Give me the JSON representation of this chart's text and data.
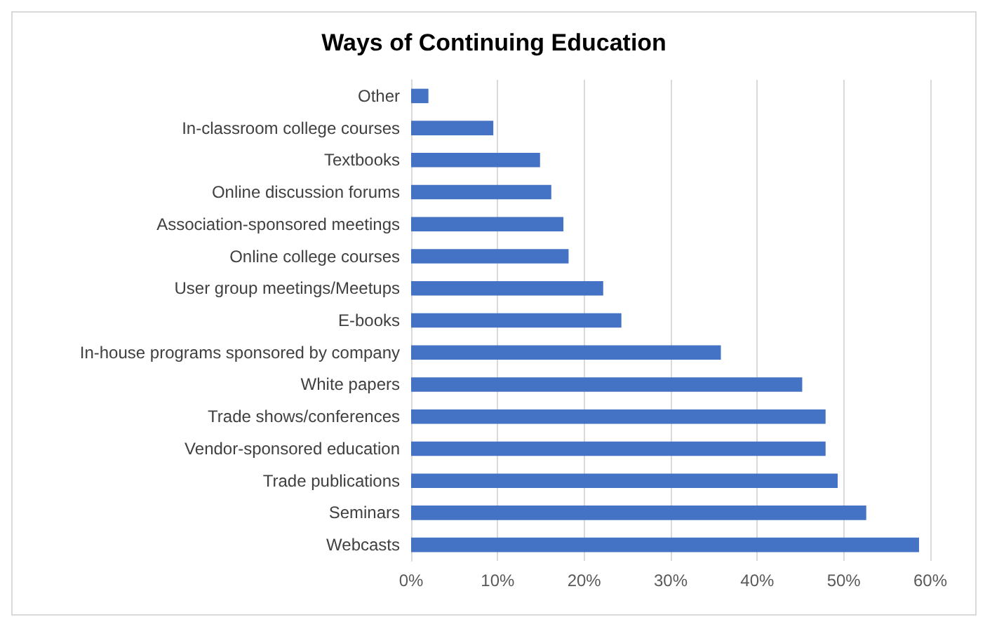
{
  "chart_data": {
    "type": "bar",
    "orientation": "horizontal",
    "title": "Ways of Continuing Education",
    "categories": [
      "Other",
      "In-classroom college courses",
      "Textbooks",
      "Online discussion forums",
      "Association-sponsored meetings",
      "Online college courses",
      "User group meetings/Meetups",
      "E-books",
      "In-house programs sponsored by company",
      "White papers",
      "Trade shows/conferences",
      "Vendor-sponsored education",
      "Trade publications",
      "Seminars",
      "Webcasts"
    ],
    "values": [
      2,
      9.5,
      14.9,
      16.2,
      17.6,
      18.2,
      22.2,
      24.3,
      35.8,
      45.2,
      47.9,
      47.9,
      49.3,
      52.6,
      58.7
    ],
    "color": "#4472c4",
    "xlim": [
      0,
      60
    ],
    "xticks": [
      {
        "value": 0,
        "label": "0%"
      },
      {
        "value": 10,
        "label": "10%"
      },
      {
        "value": 20,
        "label": "20%"
      },
      {
        "value": 30,
        "label": "30%"
      },
      {
        "value": 40,
        "label": "40%"
      },
      {
        "value": 50,
        "label": "50%"
      },
      {
        "value": 60,
        "label": "60%"
      }
    ],
    "grid": "x"
  }
}
